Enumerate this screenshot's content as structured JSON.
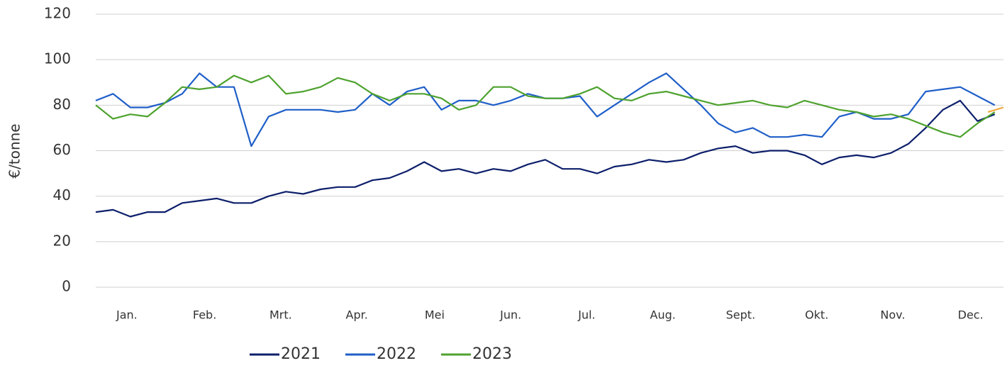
{
  "chart_data": {
    "type": "line",
    "ylabel": "€/tonne",
    "x": [
      0,
      1,
      2,
      3,
      4,
      5,
      6,
      7,
      8,
      9,
      10,
      11,
      12,
      13,
      14,
      15,
      16,
      17,
      18,
      19,
      20,
      21,
      22,
      23,
      24,
      25,
      26,
      27,
      28,
      29,
      30,
      31,
      32,
      33,
      34,
      35,
      36,
      37,
      38,
      39,
      40,
      41,
      42,
      43,
      44,
      45,
      46,
      47,
      48,
      49,
      50,
      51,
      52
    ],
    "xlim": [
      0,
      52.5
    ],
    "xticks": [
      {
        "value": 1.8,
        "label": "Jan."
      },
      {
        "value": 6.3,
        "label": "Feb."
      },
      {
        "value": 10.7,
        "label": "Mrt."
      },
      {
        "value": 15.1,
        "label": "Apr."
      },
      {
        "value": 19.6,
        "label": "Mei"
      },
      {
        "value": 24.0,
        "label": "Jun."
      },
      {
        "value": 28.4,
        "label": "Jul."
      },
      {
        "value": 32.8,
        "label": "Aug."
      },
      {
        "value": 37.3,
        "label": "Sept."
      },
      {
        "value": 41.7,
        "label": "Okt."
      },
      {
        "value": 46.1,
        "label": "Nov."
      },
      {
        "value": 50.6,
        "label": "Dec."
      }
    ],
    "ylim": [
      0,
      120
    ],
    "yticks": [
      0,
      20,
      40,
      60,
      80,
      100,
      120
    ],
    "grid": true,
    "legend": "bottom",
    "series": [
      {
        "name": "2021",
        "color": "#0d1f6b",
        "values": [
          33,
          34,
          31,
          33,
          33,
          37,
          38,
          39,
          37,
          37,
          40,
          42,
          41,
          43,
          44,
          44,
          47,
          48,
          51,
          55,
          51,
          52,
          50,
          52,
          51,
          54,
          56,
          52,
          52,
          50,
          53,
          54,
          56,
          55,
          56,
          59,
          61,
          62,
          59,
          60,
          60,
          58,
          54,
          57,
          58,
          57,
          59,
          63,
          70,
          78,
          82,
          73,
          76
        ]
      },
      {
        "name": "2022",
        "color": "#1f5fc8",
        "values": [
          82,
          85,
          79,
          79,
          81,
          85,
          94,
          88,
          88,
          62,
          75,
          78,
          78,
          78,
          77,
          78,
          85,
          80,
          86,
          88,
          78,
          82,
          82,
          80,
          82,
          85,
          83,
          83,
          84,
          75,
          80,
          85,
          90,
          94,
          87,
          80,
          72,
          68,
          70,
          66,
          66,
          67,
          66,
          75,
          77,
          74,
          74,
          76,
          86,
          87,
          88,
          84,
          80
        ]
      },
      {
        "name": "2023",
        "color": "#4ea22e",
        "values": [
          80,
          74,
          76,
          75,
          81,
          88,
          87,
          88,
          93,
          90,
          93,
          85,
          86,
          88,
          92,
          90,
          85,
          82,
          85,
          85,
          83,
          78,
          80,
          88,
          88,
          84,
          83,
          83,
          85,
          88,
          83,
          82,
          85,
          86,
          84,
          82,
          80,
          81,
          82,
          80,
          79,
          82,
          80,
          78,
          77,
          75,
          76,
          74,
          71,
          68,
          66,
          72,
          77
        ]
      },
      {
        "color": "#f2a93b",
        "x": [
          51.6,
          52.5
        ],
        "values": [
          77,
          79
        ]
      }
    ]
  }
}
